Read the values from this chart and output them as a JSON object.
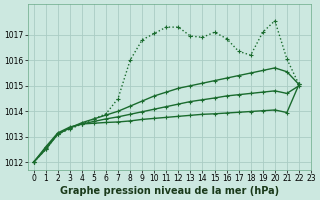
{
  "xlabel": "Graphe pression niveau de la mer (hPa)",
  "background_color": "#cce8e0",
  "grid_color": "#aaccc4",
  "line_color": "#1a6b2e",
  "xlim": [
    -0.5,
    23
  ],
  "ylim": [
    1011.7,
    1018.2
  ],
  "yticks": [
    1012,
    1013,
    1014,
    1015,
    1016,
    1017
  ],
  "xticks": [
    0,
    1,
    2,
    3,
    4,
    5,
    6,
    7,
    8,
    9,
    10,
    11,
    12,
    13,
    14,
    15,
    16,
    17,
    18,
    19,
    20,
    21,
    22,
    23
  ],
  "series": [
    {
      "y": [
        1012.0,
        1012.5,
        1013.1,
        1013.3,
        1013.5,
        1013.7,
        1013.9,
        1014.5,
        1016.0,
        1016.8,
        1017.05,
        1017.3,
        1017.3,
        1016.95,
        1016.9,
        1017.1,
        1016.85,
        1016.35,
        1016.2,
        1017.1,
        1017.55,
        1016.05,
        1015.05,
        null
      ],
      "linestyle": "dotted",
      "linewidth": 1.0,
      "marker": "+"
    },
    {
      "y": [
        1012.0,
        1012.5,
        1013.1,
        1013.35,
        1013.55,
        1013.7,
        1013.85,
        1014.0,
        1014.2,
        1014.4,
        1014.6,
        1014.75,
        1014.9,
        1015.0,
        1015.1,
        1015.2,
        1015.3,
        1015.4,
        1015.5,
        1015.6,
        1015.7,
        1015.55,
        1015.05,
        null
      ],
      "linestyle": "-",
      "linewidth": 1.0,
      "marker": "+"
    },
    {
      "y": [
        1012.0,
        1012.55,
        1013.1,
        1013.35,
        1013.5,
        1013.6,
        1013.7,
        1013.78,
        1013.88,
        1013.98,
        1014.08,
        1014.18,
        1014.28,
        1014.38,
        1014.45,
        1014.52,
        1014.6,
        1014.65,
        1014.7,
        1014.75,
        1014.8,
        1014.7,
        1015.0,
        null
      ],
      "linestyle": "-",
      "linewidth": 1.0,
      "marker": "+"
    },
    {
      "y": [
        1012.0,
        1012.6,
        1013.15,
        1013.38,
        1013.5,
        1013.53,
        1013.56,
        1013.58,
        1013.62,
        1013.68,
        1013.72,
        1013.76,
        1013.8,
        1013.84,
        1013.88,
        1013.9,
        1013.93,
        1013.96,
        1013.99,
        1014.02,
        1014.05,
        1013.95,
        1015.05,
        null
      ],
      "linestyle": "-",
      "linewidth": 1.0,
      "marker": "+"
    }
  ],
  "xlabel_fontsize": 7,
  "tick_fontsize": 5.5
}
